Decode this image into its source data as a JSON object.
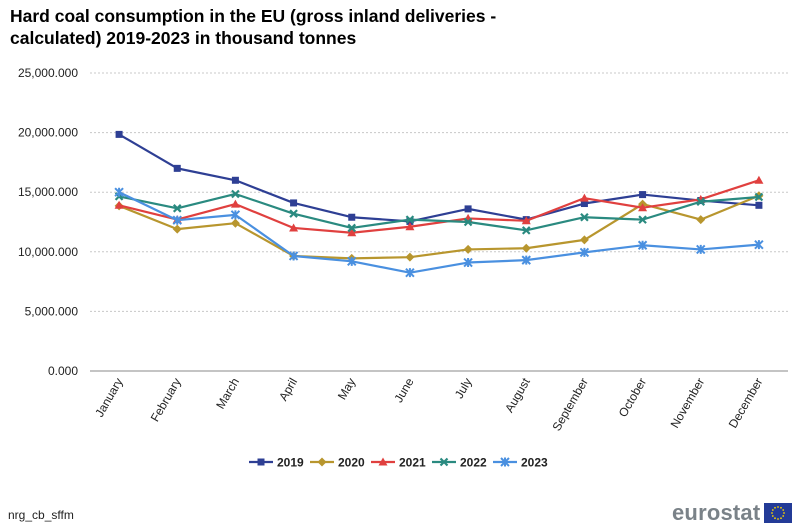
{
  "chart_data": {
    "type": "line",
    "title": "Hard coal consumption in the EU (gross inland deliveries - calculated) 2019-2023  in thousand tonnes",
    "title_lines": [
      "Hard coal consumption in the EU (gross inland deliveries -",
      "calculated) 2019-2023  in thousand tonnes"
    ],
    "xlabel": "",
    "ylabel": "",
    "categories": [
      "January",
      "February",
      "March",
      "April",
      "May",
      "June",
      "July",
      "August",
      "September",
      "October",
      "November",
      "December"
    ],
    "ylim": [
      0,
      25000
    ],
    "yticks": [
      0,
      5000,
      10000,
      15000,
      20000,
      25000
    ],
    "ytick_labels": [
      "0.000",
      "5,000.000",
      "10,000.000",
      "15,000.000",
      "20,000.000",
      "25,000.000"
    ],
    "grid": true,
    "legend_position": "bottom",
    "series": [
      {
        "name": "2019",
        "color": "#2e3f94",
        "marker": "square",
        "values": [
          19850,
          17000,
          16000,
          14100,
          12900,
          12550,
          13600,
          12700,
          14050,
          14800,
          14300,
          13900
        ]
      },
      {
        "name": "2020",
        "color": "#b8962e",
        "marker": "diamond",
        "values": [
          13850,
          11900,
          12400,
          9650,
          9450,
          9550,
          10200,
          10300,
          11000,
          14000,
          12700,
          14700
        ]
      },
      {
        "name": "2021",
        "color": "#e0403f",
        "marker": "triangle",
        "values": [
          13900,
          12700,
          14000,
          12000,
          11600,
          12100,
          12800,
          12600,
          14500,
          13700,
          14400,
          16000
        ]
      },
      {
        "name": "2022",
        "color": "#2a8a80",
        "marker": "cross",
        "values": [
          14650,
          13650,
          14850,
          13200,
          12000,
          12700,
          12500,
          11800,
          12900,
          12700,
          14200,
          14600
        ]
      },
      {
        "name": "2023",
        "color": "#4a90e0",
        "marker": "star",
        "values": [
          15000,
          12650,
          13100,
          9650,
          9200,
          8250,
          9100,
          9300,
          9950,
          10550,
          10200,
          10600
        ]
      }
    ]
  },
  "footer": {
    "source_code": "nrg_cb_sffm",
    "logo_text": "eurostat",
    "logo_flag_color": "#233b97",
    "logo_star_color": "#f5d100"
  }
}
